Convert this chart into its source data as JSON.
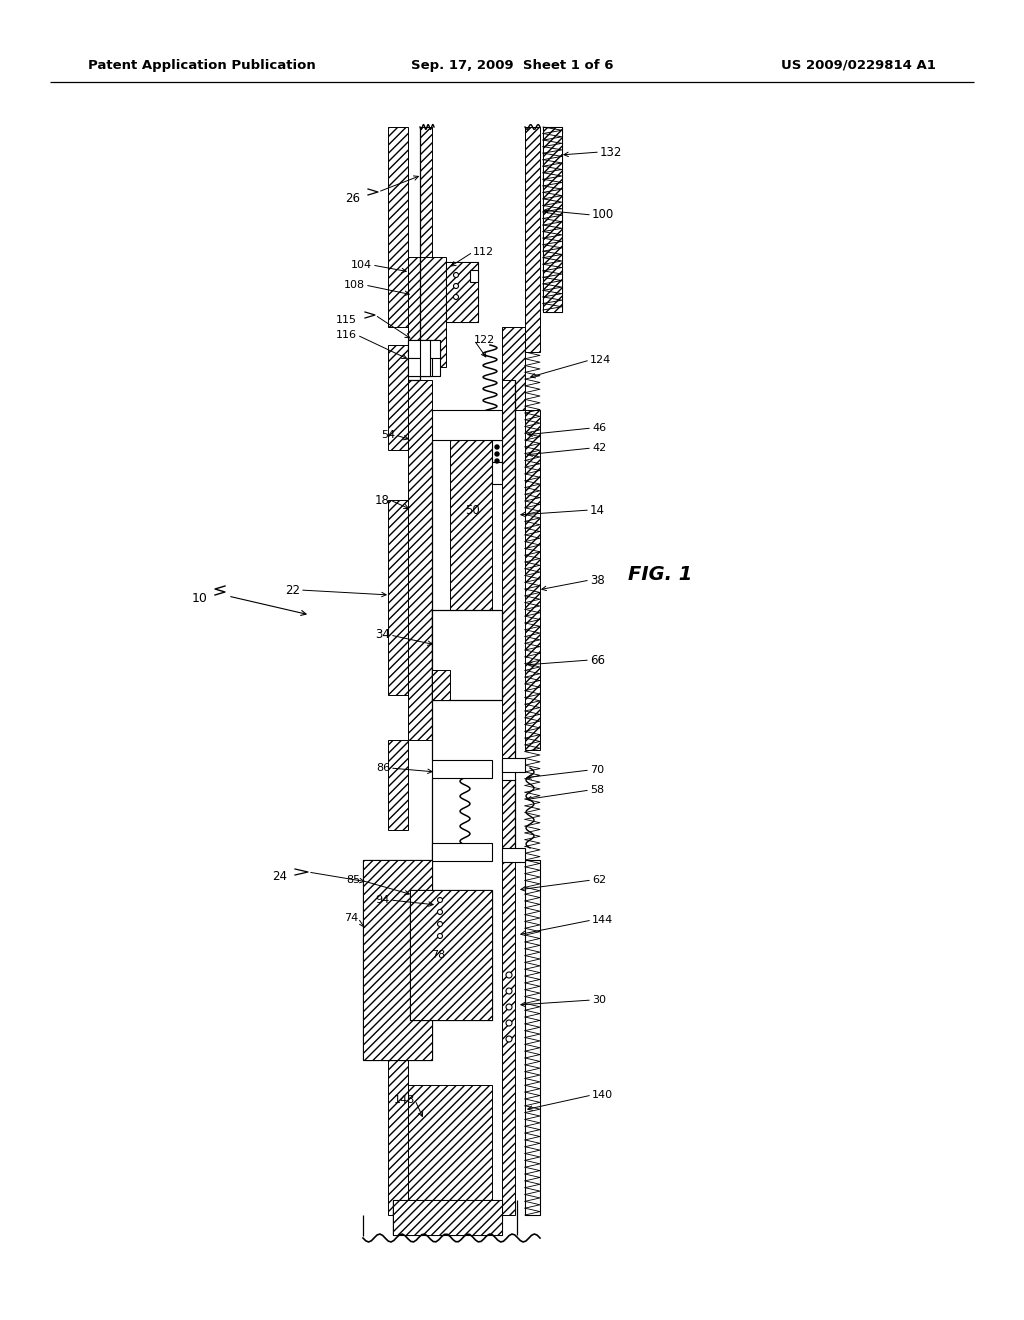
{
  "header_left": "Patent Application Publication",
  "header_center": "Sep. 17, 2009  Sheet 1 of 6",
  "header_right": "US 2009/0229814 A1",
  "fig_label": "FIG. 1",
  "bg": "#ffffff"
}
